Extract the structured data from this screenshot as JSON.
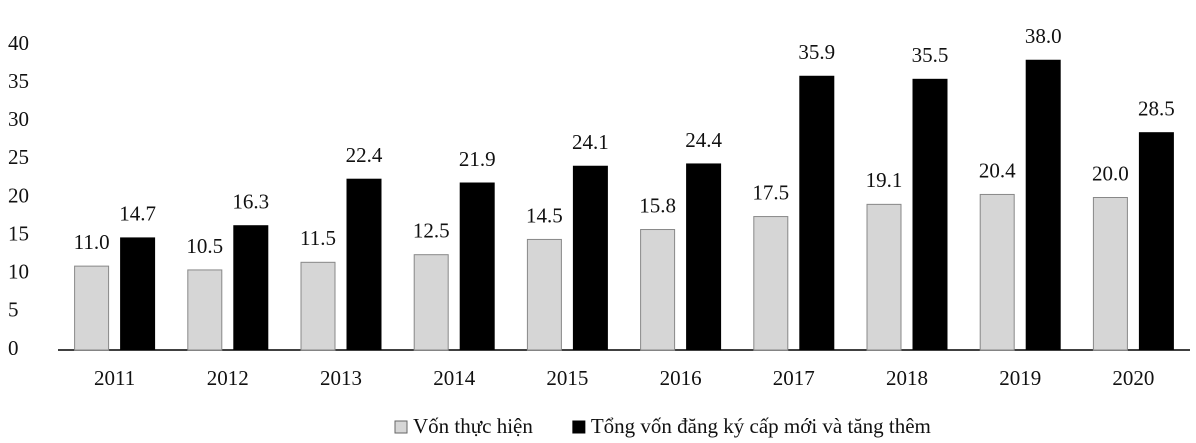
{
  "chart_data": {
    "type": "bar",
    "categories": [
      "2011",
      "2012",
      "2013",
      "2014",
      "2015",
      "2016",
      "2017",
      "2018",
      "2019",
      "2020"
    ],
    "series": [
      {
        "name": "Vốn thực hiện",
        "color": "#d6d6d6",
        "values": [
          11.0,
          10.5,
          11.5,
          12.5,
          14.5,
          15.8,
          17.5,
          19.1,
          20.4,
          20.0
        ],
        "value_labels": [
          "11.0",
          "10.5",
          "11.5",
          "12.5",
          "14.5",
          "15.8",
          "17.5",
          "19.1",
          "20.4",
          "20.0"
        ]
      },
      {
        "name": "Tổng vốn đăng ký cấp mới và tăng thêm",
        "color": "#000000",
        "values": [
          14.7,
          16.3,
          22.4,
          21.9,
          24.1,
          24.4,
          35.9,
          35.5,
          38.0,
          28.5
        ],
        "value_labels": [
          "14.7",
          "16.3",
          "22.4",
          "21.9",
          "24.1",
          "24.4",
          "35.9",
          "35.5",
          "38.0",
          "28.5"
        ]
      }
    ],
    "ylim": [
      0,
      40
    ],
    "yticks": [
      0,
      5,
      10,
      15,
      20,
      25,
      30,
      35,
      40
    ],
    "grid": false,
    "legend": "bottom"
  }
}
